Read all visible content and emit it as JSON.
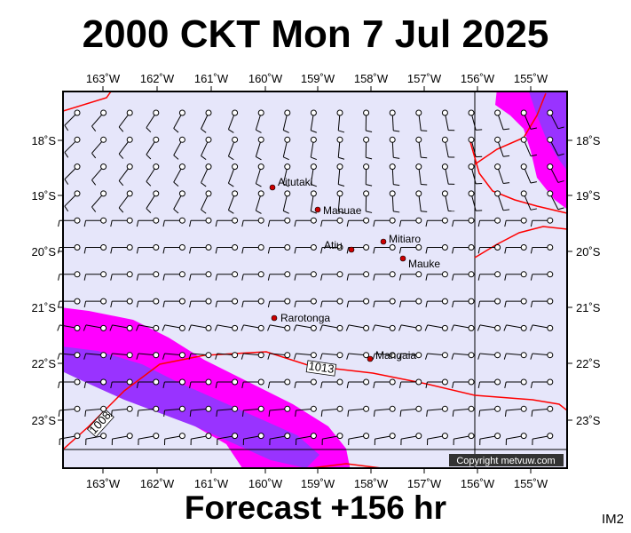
{
  "title": "2000 CKT Mon 7 Jul 2025",
  "footer": "Forecast +156 hr",
  "tag": "IM2",
  "copyright": "Copyright metvuw.com",
  "colors": {
    "ocean": "#e6e6fa",
    "frame": "#000000",
    "isobar": "#ff0000",
    "rain_light": "#ff00ff",
    "rain_heavy": "#9933ff",
    "island": "#cc0000"
  },
  "axes": {
    "x_labels": [
      "163˚W",
      "162˚W",
      "161˚W",
      "160˚W",
      "159˚W",
      "158˚W",
      "157˚W",
      "156˚W",
      "155˚W"
    ],
    "y_labels": [
      "18˚S",
      "19˚S",
      "20˚S",
      "21˚S",
      "22˚S",
      "23˚S"
    ]
  },
  "isobars": [
    {
      "label": "1013"
    },
    {
      "label": "1008"
    }
  ],
  "places": [
    {
      "name": "Aitutaki"
    },
    {
      "name": "Manuae"
    },
    {
      "name": "Mitiaro"
    },
    {
      "name": "Atiu"
    },
    {
      "name": "Mauke"
    },
    {
      "name": "Rarotonga"
    },
    {
      "name": "Mangaia"
    }
  ]
}
